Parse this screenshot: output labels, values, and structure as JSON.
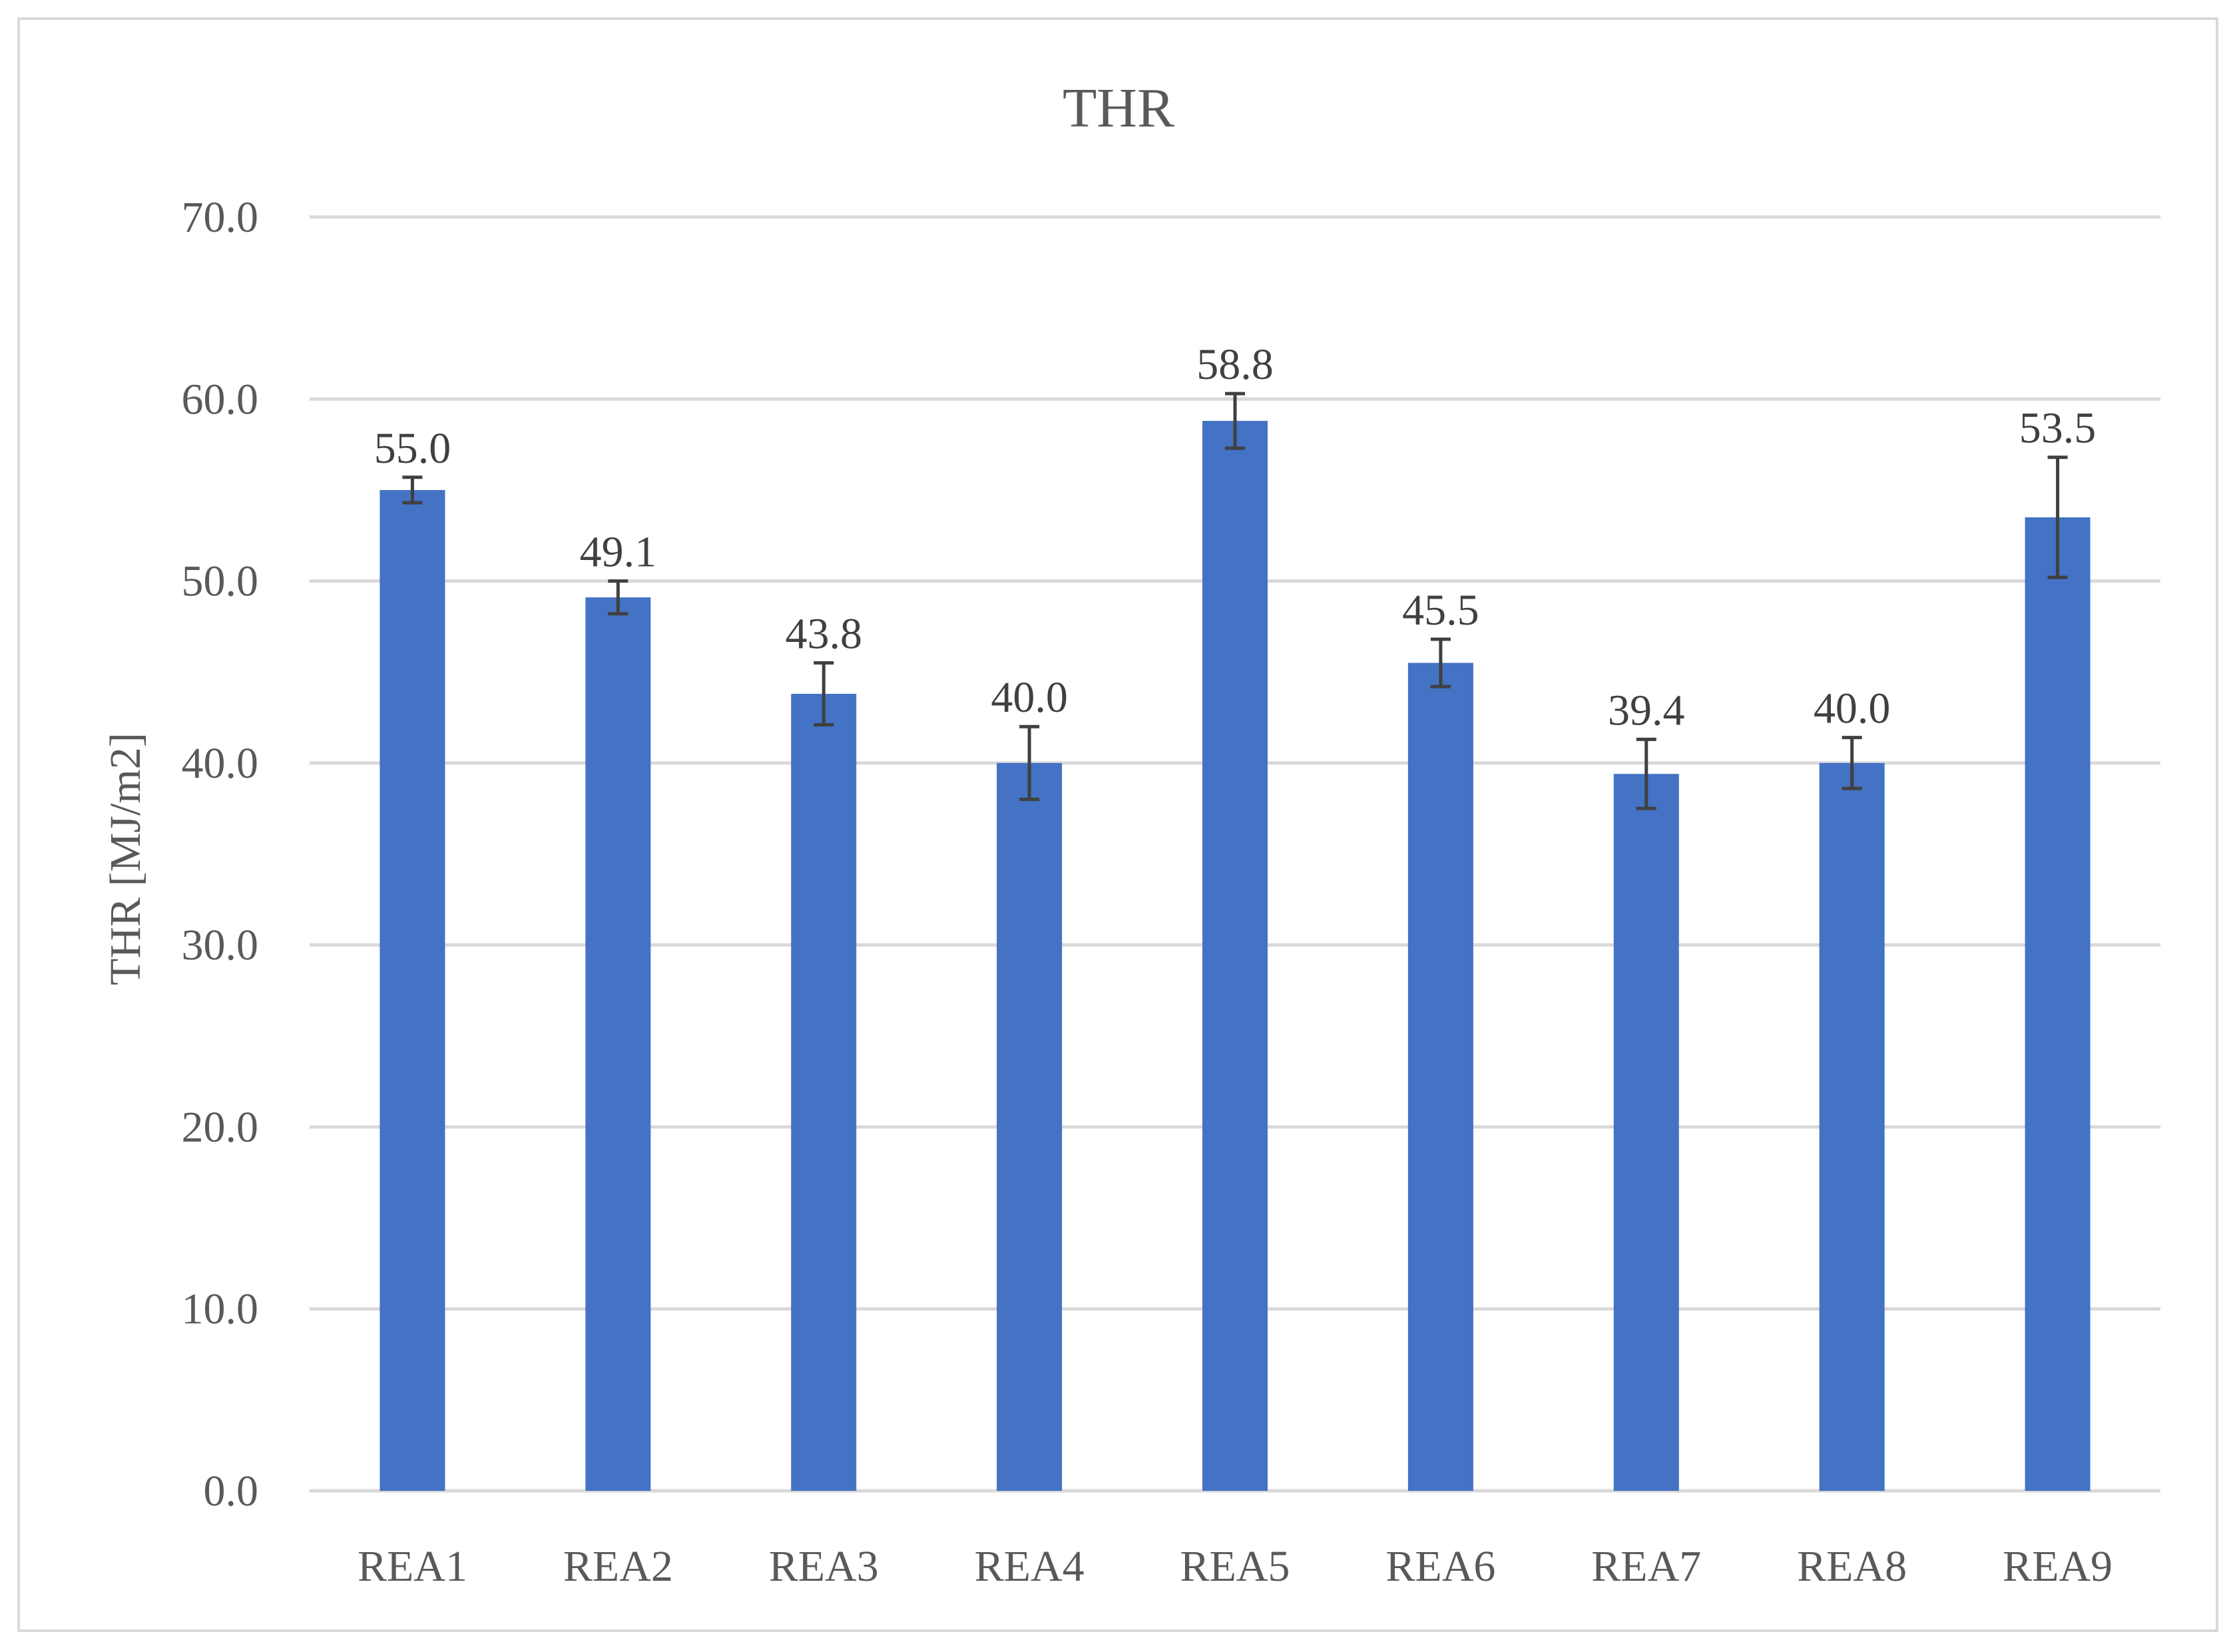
{
  "chart_data": {
    "type": "bar",
    "title": "THR",
    "ylabel": "THR [MJ/m2]",
    "xlabel": "",
    "categories": [
      "REA1",
      "REA2",
      "REA3",
      "REA4",
      "REA5",
      "REA6",
      "REA7",
      "REA8",
      "REA9"
    ],
    "values": [
      55.0,
      49.1,
      43.8,
      40.0,
      58.8,
      45.5,
      39.4,
      40.0,
      53.5
    ],
    "data_labels": [
      "55.0",
      "49.1",
      "43.8",
      "40.0",
      "58.8",
      "45.5",
      "39.4",
      "40.0",
      "53.5"
    ],
    "error": [
      0.7,
      0.9,
      1.7,
      2.0,
      1.5,
      1.3,
      1.9,
      1.4,
      3.3
    ],
    "ylim": [
      0,
      70
    ],
    "yticks": [
      0,
      10,
      20,
      30,
      40,
      50,
      60,
      70
    ],
    "ytick_labels": [
      "0.0",
      "10.0",
      "20.0",
      "30.0",
      "40.0",
      "50.0",
      "60.0",
      "70.0"
    ],
    "grid": true,
    "legend": "none",
    "colors": {
      "bar": "#4472c4",
      "gridline": "#d9d9d9",
      "error_bar": "#404040",
      "text": "#595959",
      "frame": "#d9d9d9"
    }
  }
}
